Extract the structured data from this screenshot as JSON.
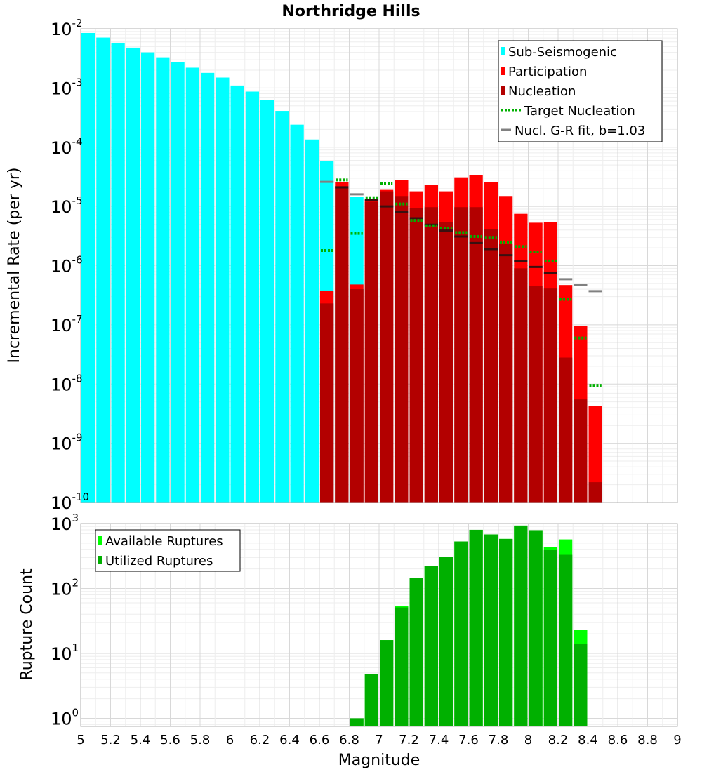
{
  "chart_data": [
    {
      "type": "bar",
      "title": "Northridge Hills",
      "ylabel": "Incremental Rate (per yr)",
      "xlabel": "",
      "xlim": [
        5,
        9
      ],
      "ylim": [
        1e-10,
        0.01
      ],
      "yscale": "log",
      "bar_width": 0.1,
      "grid": true,
      "legend_position": "top-right",
      "legend": [
        "Sub-Seismogenic",
        "Participation",
        "Nucleation",
        "Target Nucleation",
        "Nucl. G-R fit, b=1.03"
      ],
      "colors": {
        "sub_seismogenic": "#00ffff",
        "participation": "#ff0000",
        "nucleation": "#b30000",
        "target": "#00b000",
        "gr_fit": "#808080"
      },
      "series": [
        {
          "name": "Sub-Seismogenic",
          "x": [
            5.05,
            5.15,
            5.25,
            5.35,
            5.45,
            5.55,
            5.65,
            5.75,
            5.85,
            5.95,
            6.05,
            6.15,
            6.25,
            6.35,
            6.45,
            6.55,
            6.65,
            6.75,
            6.85
          ],
          "values": [
            0.0085,
            0.0071,
            0.0058,
            0.0048,
            0.004,
            0.0033,
            0.0027,
            0.0022,
            0.0018,
            0.0015,
            0.0011,
            0.00087,
            0.00062,
            0.00041,
            0.00024,
            0.000135,
            5.8e-05,
            2.2e-05,
            1.45e-05
          ]
        },
        {
          "name": "Participation",
          "x": [
            6.65,
            6.75,
            6.85,
            6.95,
            7.05,
            7.15,
            7.25,
            7.35,
            7.45,
            7.55,
            7.65,
            7.75,
            7.85,
            7.95,
            8.05,
            8.15,
            8.25,
            8.35,
            8.45
          ],
          "values": [
            3.8e-07,
            2.6e-05,
            4.8e-07,
            1.3e-05,
            1.9e-05,
            2.8e-05,
            1.8e-05,
            2.3e-05,
            1.8e-05,
            3.1e-05,
            3.4e-05,
            2.6e-05,
            1.5e-05,
            7.5e-06,
            5.3e-06,
            5.4e-06,
            4.7e-07,
            9.5e-08,
            4.3e-09
          ]
        },
        {
          "name": "Nucleation",
          "x": [
            6.65,
            6.75,
            6.85,
            6.95,
            7.05,
            7.15,
            7.25,
            7.35,
            7.45,
            7.55,
            7.65,
            7.75,
            7.85,
            7.95,
            8.05,
            8.15,
            8.25,
            8.35,
            8.45
          ],
          "values": [
            2.3e-07,
            2.2e-05,
            4e-07,
            1.2e-05,
            1.8e-05,
            1.5e-05,
            9.5e-06,
            9.7e-06,
            5.5e-06,
            9.7e-06,
            9.7e-06,
            4.1e-06,
            2.3e-06,
            9e-07,
            4.5e-07,
            4.1e-07,
            2.8e-08,
            5.5e-09,
            2.2e-10
          ]
        },
        {
          "name": "Target Nucleation",
          "x": [
            6.65,
            6.75,
            6.85,
            6.95,
            7.05,
            7.15,
            7.25,
            7.35,
            7.45,
            7.55,
            7.65,
            7.75,
            7.85,
            7.95,
            8.05,
            8.15,
            8.25,
            8.35,
            8.45
          ],
          "values": [
            1.8e-06,
            2.8e-05,
            3.5e-06,
            1.4e-05,
            2.4e-05,
            1.1e-05,
            5.8e-06,
            4.7e-06,
            4.3e-06,
            3.6e-06,
            3.1e-06,
            3e-06,
            2.5e-06,
            2.1e-06,
            1.7e-06,
            1.2e-06,
            2.7e-07,
            6e-08,
            9.5e-09
          ]
        },
        {
          "name": "Nucl. G-R fit, b=1.03",
          "x": [
            6.65,
            6.75,
            6.85,
            6.95,
            7.05,
            7.15,
            7.25,
            7.35,
            7.45,
            7.55,
            7.65,
            7.75,
            7.85,
            7.95,
            8.05,
            8.15,
            8.25,
            8.35,
            8.45
          ],
          "values": [
            2.6e-05,
            2.1e-05,
            1.6e-05,
            1.3e-05,
            1e-05,
            8e-06,
            6.3e-06,
            4.9e-06,
            3.9e-06,
            3.1e-06,
            2.4e-06,
            1.9e-06,
            1.5e-06,
            1.2e-06,
            9.5e-07,
            7.5e-07,
            5.9e-07,
            4.7e-07,
            3.7e-07
          ]
        }
      ]
    },
    {
      "type": "bar",
      "title": "",
      "ylabel": "Rupture Count",
      "xlabel": "Magnitude",
      "xlim": [
        5,
        9
      ],
      "ylim": [
        0.75,
        1000
      ],
      "yscale": "log",
      "bar_width": 0.1,
      "grid": true,
      "legend_position": "top-left",
      "legend": [
        "Available Ruptures",
        "Utilized Ruptures"
      ],
      "colors": {
        "available": "#00ff00",
        "utilized": "#00b000"
      },
      "x_ticks": [
        5,
        5.2,
        5.4,
        5.6,
        5.8,
        6,
        6.2,
        6.4,
        6.6,
        6.8,
        7,
        7.2,
        7.4,
        7.6,
        7.8,
        8,
        8.2,
        8.4,
        8.6,
        8.8,
        9
      ],
      "x_tick_labels": [
        "5",
        "5.2",
        "5.4",
        "5.6",
        "5.8",
        "6",
        "6.2",
        "6.4",
        "6.6",
        "6.8",
        "7",
        "7.2",
        "7.4",
        "7.6",
        "7.8",
        "8",
        "8.2",
        "8.4",
        "8.6",
        "8.8",
        "9"
      ],
      "series": [
        {
          "name": "Available Ruptures",
          "x": [
            6.85,
            6.95,
            7.05,
            7.15,
            7.25,
            7.35,
            7.45,
            7.55,
            7.65,
            7.75,
            7.85,
            7.95,
            8.05,
            8.15,
            8.25,
            8.35
          ],
          "values": [
            1,
            4.8,
            16,
            53,
            145,
            220,
            310,
            530,
            800,
            680,
            580,
            930,
            790,
            430,
            570,
            23
          ]
        },
        {
          "name": "Utilized Ruptures",
          "x": [
            6.85,
            6.95,
            7.05,
            7.15,
            7.25,
            7.35,
            7.45,
            7.55,
            7.65,
            7.75,
            7.85,
            7.95,
            8.05,
            8.15,
            8.25,
            8.35
          ],
          "values": [
            1,
            4.8,
            16,
            51,
            145,
            220,
            310,
            530,
            800,
            680,
            580,
            930,
            790,
            390,
            330,
            14
          ]
        }
      ]
    }
  ]
}
